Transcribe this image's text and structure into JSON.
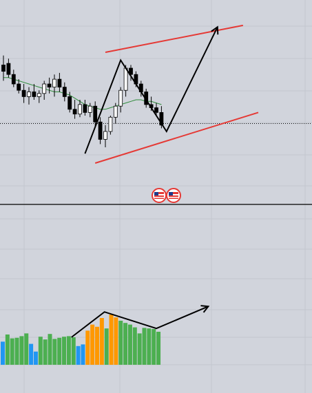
{
  "colors": {
    "background": "#d1d4dc",
    "grid": "#c3c6ce",
    "candle_up": "#ffffff",
    "candle_down": "#000000",
    "moving_average": "#2e8b3a",
    "channel_lines": "#e53935",
    "drawing_lines": "#000000",
    "volume_blue": "#2196f3",
    "volume_green": "#4caf50",
    "volume_orange": "#ff9800"
  },
  "icons": [
    "us-flag-icon",
    "us-flag-icon"
  ],
  "chart_data": [
    {
      "type": "candlestick",
      "title": "",
      "xlabel": "",
      "ylabel": "",
      "price_range": [
        0,
        100
      ],
      "grid": true,
      "reference_line": {
        "value": 35,
        "style": "dotted"
      },
      "candles": [
        {
          "o": 72,
          "h": 78,
          "l": 62,
          "c": 68
        },
        {
          "o": 73,
          "h": 76,
          "l": 64,
          "c": 66
        },
        {
          "o": 66,
          "h": 69,
          "l": 58,
          "c": 60
        },
        {
          "o": 60,
          "h": 63,
          "l": 54,
          "c": 56
        },
        {
          "o": 56,
          "h": 60,
          "l": 48,
          "c": 52
        },
        {
          "o": 52,
          "h": 58,
          "l": 47,
          "c": 55
        },
        {
          "o": 55,
          "h": 60,
          "l": 50,
          "c": 52
        },
        {
          "o": 52,
          "h": 56,
          "l": 48,
          "c": 54
        },
        {
          "o": 54,
          "h": 62,
          "l": 50,
          "c": 60
        },
        {
          "o": 60,
          "h": 64,
          "l": 54,
          "c": 58
        },
        {
          "o": 58,
          "h": 66,
          "l": 52,
          "c": 63
        },
        {
          "o": 63,
          "h": 67,
          "l": 55,
          "c": 58
        },
        {
          "o": 58,
          "h": 61,
          "l": 49,
          "c": 52
        },
        {
          "o": 52,
          "h": 55,
          "l": 42,
          "c": 44
        },
        {
          "o": 44,
          "h": 50,
          "l": 38,
          "c": 41
        },
        {
          "o": 41,
          "h": 50,
          "l": 39,
          "c": 47
        },
        {
          "o": 47,
          "h": 50,
          "l": 40,
          "c": 42
        },
        {
          "o": 42,
          "h": 48,
          "l": 39,
          "c": 46
        },
        {
          "o": 46,
          "h": 49,
          "l": 33,
          "c": 36
        },
        {
          "o": 36,
          "h": 39,
          "l": 22,
          "c": 25
        },
        {
          "o": 25,
          "h": 34,
          "l": 20,
          "c": 30
        },
        {
          "o": 30,
          "h": 40,
          "l": 28,
          "c": 39
        },
        {
          "o": 39,
          "h": 48,
          "l": 35,
          "c": 46
        },
        {
          "o": 46,
          "h": 58,
          "l": 42,
          "c": 56
        },
        {
          "o": 56,
          "h": 72,
          "l": 52,
          "c": 70
        },
        {
          "o": 70,
          "h": 72,
          "l": 62,
          "c": 66
        },
        {
          "o": 66,
          "h": 68,
          "l": 58,
          "c": 60
        },
        {
          "o": 60,
          "h": 62,
          "l": 52,
          "c": 55
        },
        {
          "o": 55,
          "h": 57,
          "l": 45,
          "c": 47
        },
        {
          "o": 47,
          "h": 52,
          "l": 43,
          "c": 45
        },
        {
          "o": 45,
          "h": 48,
          "l": 40,
          "c": 42
        },
        {
          "o": 42,
          "h": 46,
          "l": 32,
          "c": 34
        }
      ],
      "moving_average": [
        64,
        64,
        63,
        62,
        61,
        60,
        59,
        58,
        57,
        56,
        55,
        55,
        54,
        53,
        51,
        49,
        47,
        46,
        45,
        44,
        44,
        45,
        46,
        47,
        48,
        49,
        50,
        50,
        49,
        49,
        48,
        47
      ],
      "channel_lines": [
        {
          "from": [
            20,
            80
          ],
          "to": [
            47,
            97
          ]
        },
        {
          "from": [
            18,
            10
          ],
          "to": [
            50,
            42
          ]
        }
      ],
      "pattern_polyline": [
        [
          16,
          16
        ],
        [
          23,
          75
        ],
        [
          32,
          30
        ],
        [
          42,
          96
        ]
      ],
      "pattern_arrow_head": [
        42,
        96
      ]
    },
    {
      "type": "bar",
      "title": "",
      "xlabel": "",
      "ylabel": "",
      "ylim": [
        0,
        100
      ],
      "grid": true,
      "values": [
        42,
        55,
        48,
        49,
        52,
        57,
        38,
        24,
        51,
        46,
        56,
        47,
        49,
        51,
        52,
        50,
        34,
        37,
        62,
        73,
        69,
        85,
        66,
        91,
        86,
        80,
        76,
        73,
        68,
        57,
        67,
        66,
        65,
        60
      ],
      "bar_colors": [
        "blue",
        "green",
        "green",
        "green",
        "green",
        "green",
        "blue",
        "blue",
        "green",
        "green",
        "green",
        "green",
        "green",
        "green",
        "green",
        "green",
        "blue",
        "blue",
        "orange",
        "orange",
        "orange",
        "orange",
        "green",
        "orange",
        "orange",
        "green",
        "green",
        "green",
        "green",
        "green",
        "green",
        "green",
        "green",
        "green"
      ],
      "pattern_polyline": [
        [
          15,
          50
        ],
        [
          22,
          96
        ],
        [
          33,
          66
        ],
        [
          44,
          106
        ]
      ],
      "pattern_arrow_head": [
        44,
        106
      ]
    }
  ]
}
